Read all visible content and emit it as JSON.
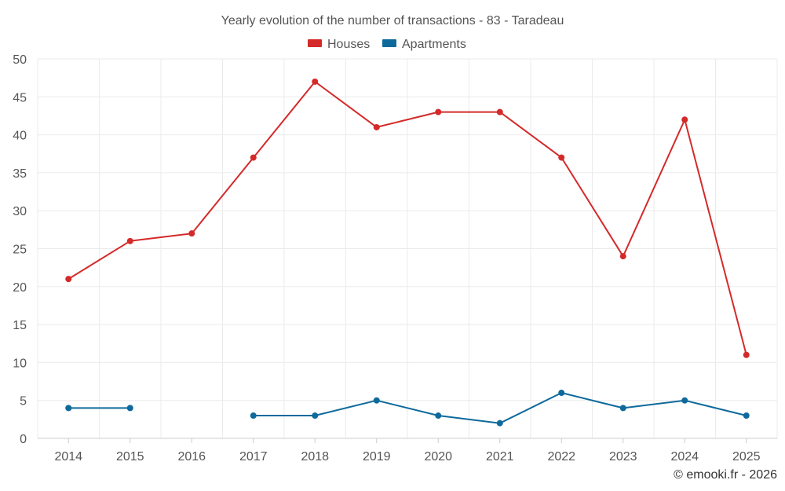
{
  "chart_data": {
    "type": "line",
    "title": "Yearly evolution of the number of transactions - 83 - Taradeau",
    "categories": [
      "2014",
      "2015",
      "2016",
      "2017",
      "2018",
      "2019",
      "2020",
      "2021",
      "2022",
      "2023",
      "2024",
      "2025"
    ],
    "y_ticks": [
      "0",
      "5",
      "10",
      "15",
      "20",
      "25",
      "30",
      "35",
      "40",
      "45",
      "50"
    ],
    "ylim": [
      0,
      50
    ],
    "grid": true,
    "legend_position": "top-center",
    "series": [
      {
        "name": "Houses",
        "color": "#d42a2a",
        "values": [
          21,
          26,
          27,
          37,
          47,
          41,
          43,
          43,
          37,
          24,
          42,
          11
        ]
      },
      {
        "name": "Apartments",
        "color": "#0e6a9c",
        "values": [
          4,
          4,
          null,
          3,
          3,
          5,
          3,
          2,
          6,
          4,
          5,
          3
        ]
      }
    ]
  },
  "credit": "© emooki.fr - 2026"
}
